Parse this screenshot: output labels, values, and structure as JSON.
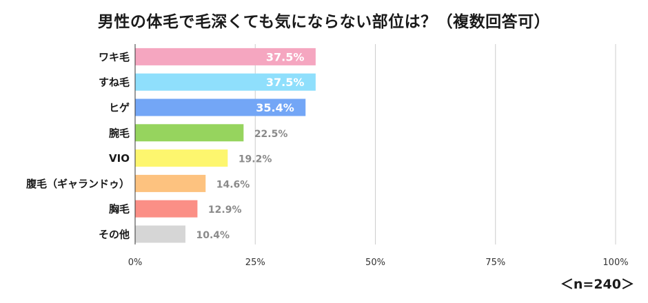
{
  "chart_data": {
    "type": "bar",
    "orientation": "horizontal",
    "title": "男性の体毛で毛深くても気にならない部位は？（複数回答可）",
    "categories": [
      "ワキ毛",
      "すね毛",
      "ヒゲ",
      "腕毛",
      "VIO",
      "腹毛（ギャランドゥ）",
      "胸毛",
      "その他"
    ],
    "values": [
      37.5,
      37.5,
      35.4,
      22.5,
      19.2,
      14.6,
      12.9,
      10.4
    ],
    "value_labels": [
      "37.5%",
      "37.5%",
      "35.4%",
      "22.5%",
      "19.2%",
      "14.6%",
      "12.9%",
      "10.4%"
    ],
    "colors": [
      "#f5a6c0",
      "#8fdffc",
      "#73a6f6",
      "#96d45e",
      "#fdf66e",
      "#fdc27f",
      "#fb8f86",
      "#d6d6d6"
    ],
    "label_inside": [
      true,
      true,
      true,
      false,
      false,
      false,
      false,
      false
    ],
    "xlim": [
      0,
      100
    ],
    "xticks": [
      0,
      25,
      50,
      75,
      100
    ],
    "xtick_labels": [
      "0%",
      "25%",
      "50%",
      "75%",
      "100%"
    ],
    "grid": true,
    "legend": "none",
    "sample_size": "＜n=240＞"
  }
}
